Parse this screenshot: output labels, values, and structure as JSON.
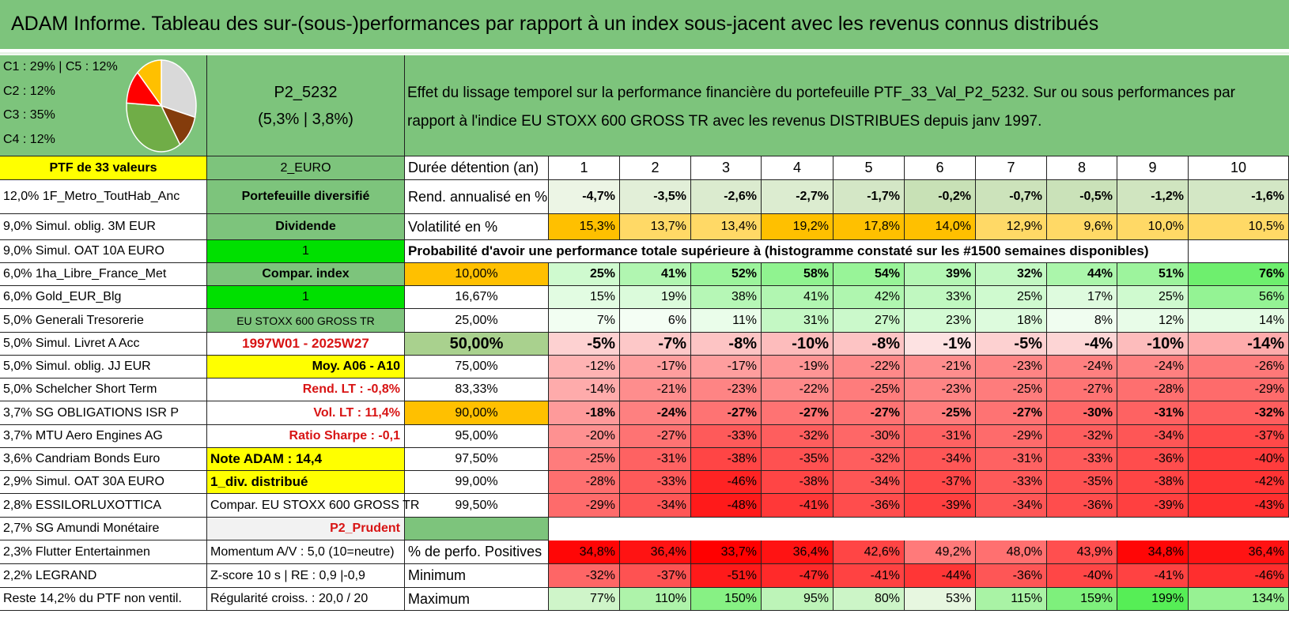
{
  "title": "ADAM Informe. Tableau des sur-(sous-)performances par rapport à un index sous-jacent avec les revenus connus distribués",
  "pie": {
    "labels": [
      "C1 : 29% | C5 : 12%",
      "C2 : 12%",
      "C3 : 35%",
      "C4 : 12%"
    ],
    "slices": [
      {
        "name": "C1",
        "value": 29,
        "color": "#d9d9d9"
      },
      {
        "name": "C5",
        "value": 12,
        "color": "#843c0c"
      },
      {
        "name": "C3",
        "value": 35,
        "color": "#70ad47"
      },
      {
        "name": "C2",
        "value": 12,
        "color": "#ff0000"
      },
      {
        "name": "C4",
        "value": 12,
        "color": "#ffc000"
      }
    ]
  },
  "portfolio": {
    "code": "P2_5232",
    "perf": "(5,3% | 3,8%)"
  },
  "description": "Effet du lissage temporel sur la performance financière du portefeuille PTF_33_Val_P2_5232. Sur ou sous performances par rapport à l'indice EU STOXX 600 GROSS TR avec les revenus DISTRIBUES depuis janv 1997.",
  "holdings_header": "PTF de 33 valeurs",
  "holdings": [
    "12,0% 1F_Metro_ToutHab_Anc",
    "9,0% Simul. oblig. 3M EUR",
    "9,0% Simul. OAT 10A EURO",
    "6,0% 1ha_Libre_France_Met",
    "6,0% Gold_EUR_Blg",
    "5,0% Generali Tresorerie",
    "5,0% Simul. Livret A Acc",
    "5,0% Simul. oblig. JJ EUR",
    "5,0% Schelcher Short Term",
    "3,7% SG OBLIGATIONS ISR P",
    "3,7% MTU Aero Engines AG",
    "3,6% Candriam Bonds Euro",
    "2,9% Simul. OAT 30A EURO",
    "2,8% ESSILORLUXOTTICA",
    "2,7% SG Amundi Monétaire",
    "2,3% Flutter Entertainmen",
    "2,2% LEGRAND",
    "Reste 14,2% du PTF non ventil."
  ],
  "params": {
    "currency": "2_EURO",
    "type": "Portefeuille diversifié",
    "dividend": "Dividende",
    "div_value": "1",
    "compar": "Compar. index",
    "compar_value": "1",
    "index_name": "EU STOXX 600 GROSS TR",
    "period": "1997W01 - 2025W27",
    "moy": "Moy. A06 - A10",
    "rend_lt": "Rend. LT : -0,8%",
    "vol_lt": "Vol. LT : 11,4%",
    "sharpe": "Ratio Sharpe : -0,1",
    "note": "Note ADAM : 14,4",
    "div_distrib": "1_div. distribué",
    "compar_full": "Compar. EU STOXX 600 GROSS TR",
    "profile": "P2_Prudent",
    "momentum": "Momentum A/V : 5,0 (10=neutre)",
    "zscore": "Z-score 10 s | RE : 0,9 |-0,9",
    "regularite": "Régularité croiss. : 20,0 / 20"
  },
  "table": {
    "duration_label": "Durée détention (an)",
    "years": [
      "1",
      "2",
      "3",
      "4",
      "5",
      "6",
      "7",
      "8",
      "9",
      "10"
    ],
    "rend_label": "Rend. annualisé en %",
    "rend": [
      "-4,7%",
      "-3,5%",
      "-2,6%",
      "-2,7%",
      "-1,7%",
      "-0,2%",
      "-0,7%",
      "-0,5%",
      "-1,2%",
      "-1,6%"
    ],
    "vol_label": "Volatilité en %",
    "vol": [
      "15,3%",
      "13,7%",
      "13,4%",
      "19,2%",
      "17,8%",
      "14,0%",
      "12,9%",
      "9,6%",
      "10,0%",
      "10,5%"
    ],
    "prob_title": "Probabilité d'avoir une performance totale supérieure à (histogramme constaté sur les #1500 semaines disponibles)",
    "prob_rows": [
      {
        "pct": "10,00%",
        "vals": [
          "25%",
          "41%",
          "52%",
          "58%",
          "54%",
          "39%",
          "32%",
          "44%",
          "51%",
          "76%"
        ]
      },
      {
        "pct": "16,67%",
        "vals": [
          "15%",
          "19%",
          "38%",
          "41%",
          "42%",
          "33%",
          "25%",
          "17%",
          "25%",
          "56%"
        ]
      },
      {
        "pct": "25,00%",
        "vals": [
          "7%",
          "6%",
          "11%",
          "31%",
          "27%",
          "23%",
          "18%",
          "8%",
          "12%",
          "14%"
        ]
      },
      {
        "pct": "50,00%",
        "vals": [
          "-5%",
          "-7%",
          "-8%",
          "-10%",
          "-8%",
          "-1%",
          "-5%",
          "-4%",
          "-10%",
          "-14%"
        ]
      },
      {
        "pct": "75,00%",
        "vals": [
          "-12%",
          "-17%",
          "-17%",
          "-19%",
          "-22%",
          "-21%",
          "-23%",
          "-24%",
          "-24%",
          "-26%"
        ]
      },
      {
        "pct": "83,33%",
        "vals": [
          "-14%",
          "-21%",
          "-23%",
          "-22%",
          "-25%",
          "-23%",
          "-25%",
          "-27%",
          "-28%",
          "-29%"
        ]
      },
      {
        "pct": "90,00%",
        "vals": [
          "-18%",
          "-24%",
          "-27%",
          "-27%",
          "-27%",
          "-25%",
          "-27%",
          "-30%",
          "-31%",
          "-32%"
        ]
      },
      {
        "pct": "95,00%",
        "vals": [
          "-20%",
          "-27%",
          "-33%",
          "-32%",
          "-30%",
          "-31%",
          "-29%",
          "-32%",
          "-34%",
          "-37%"
        ]
      },
      {
        "pct": "97,50%",
        "vals": [
          "-25%",
          "-31%",
          "-38%",
          "-35%",
          "-32%",
          "-34%",
          "-31%",
          "-33%",
          "-36%",
          "-40%"
        ]
      },
      {
        "pct": "99,00%",
        "vals": [
          "-28%",
          "-33%",
          "-46%",
          "-38%",
          "-34%",
          "-37%",
          "-33%",
          "-35%",
          "-38%",
          "-42%"
        ]
      },
      {
        "pct": "99,50%",
        "vals": [
          "-29%",
          "-34%",
          "-48%",
          "-41%",
          "-36%",
          "-39%",
          "-34%",
          "-36%",
          "-39%",
          "-43%"
        ]
      }
    ],
    "pos_label": "% de perfo. Positives",
    "pos": [
      "34,8%",
      "36,4%",
      "33,7%",
      "36,4%",
      "42,6%",
      "49,2%",
      "48,0%",
      "43,9%",
      "34,8%",
      "36,4%"
    ],
    "min_label": "Minimum",
    "min": [
      "-32%",
      "-37%",
      "-51%",
      "-47%",
      "-41%",
      "-44%",
      "-36%",
      "-40%",
      "-41%",
      "-46%"
    ],
    "max_label": "Maximum",
    "max": [
      "77%",
      "110%",
      "150%",
      "95%",
      "80%",
      "53%",
      "115%",
      "159%",
      "199%",
      "134%"
    ]
  },
  "colors": {
    "header_green": "#7dc47c",
    "yellow": "#ffff00",
    "bright_green": "#00e000",
    "orange": "#ffc000",
    "light_grey": "#f2f2f2",
    "red_text": "#d81414"
  }
}
